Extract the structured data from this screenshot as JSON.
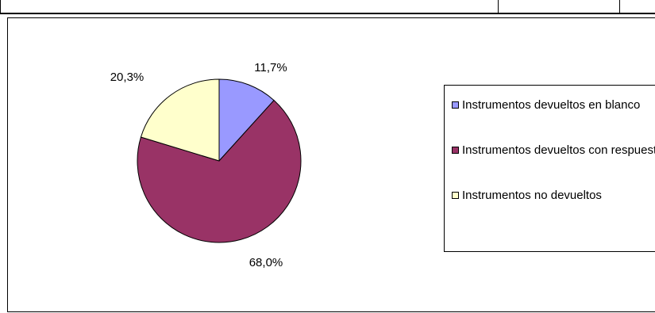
{
  "chart_data": {
    "type": "pie",
    "title": "",
    "categories": [
      "Instrumentos devueltos en blanco",
      "Instrumentos devueltos con respuestas",
      "Instrumentos no devueltos"
    ],
    "values": [
      11.7,
      68.0,
      20.3
    ],
    "data_labels": [
      "11,7%",
      "68,0%",
      "20,3%"
    ],
    "colors": [
      "#9999ff",
      "#993366",
      "#ffffcc"
    ],
    "legend_placement": "right"
  },
  "legend": {
    "item0": "Instrumentos devueltos en blanco",
    "item1": "Instrumentos devueltos con respuestas",
    "item2": "Instrumentos no devueltos"
  }
}
